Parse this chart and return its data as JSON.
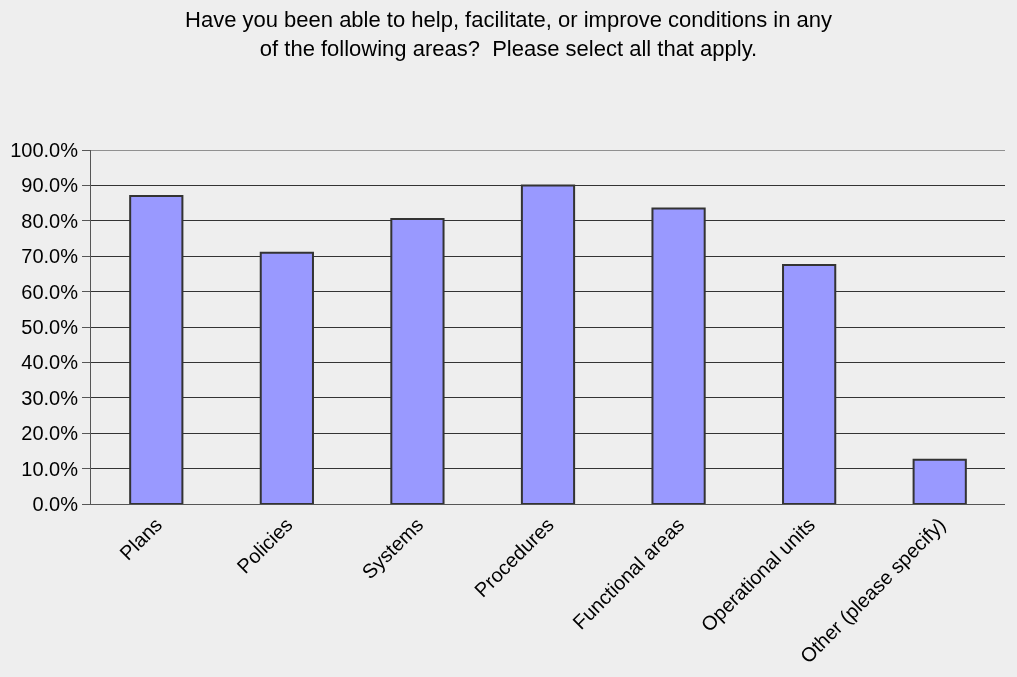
{
  "chart_data": {
    "type": "bar",
    "title": "Have you been able to help, facilitate, or improve conditions in any\nof the following areas?  Please select all that apply.",
    "categories": [
      "Plans",
      "Policies",
      "Systems",
      "Procedures",
      "Functional areas",
      "Operational units",
      "Other (please specify)"
    ],
    "values": [
      87,
      71,
      80.5,
      90,
      83.5,
      67.5,
      12.5
    ],
    "color": "#9999ff",
    "ylim": [
      0,
      100
    ],
    "yticks": [
      {
        "value": 0,
        "label": "0.0%"
      },
      {
        "value": 10,
        "label": "10.0%"
      },
      {
        "value": 20,
        "label": "20.0%"
      },
      {
        "value": 30,
        "label": "30.0%"
      },
      {
        "value": 40,
        "label": "40.0%"
      },
      {
        "value": 50,
        "label": "50.0%"
      },
      {
        "value": 60,
        "label": "60.0%"
      },
      {
        "value": 70,
        "label": "70.0%"
      },
      {
        "value": 80,
        "label": "80.0%"
      },
      {
        "value": 90,
        "label": "90.0%"
      },
      {
        "value": 100,
        "label": "100.0%"
      }
    ],
    "grid": "y"
  }
}
